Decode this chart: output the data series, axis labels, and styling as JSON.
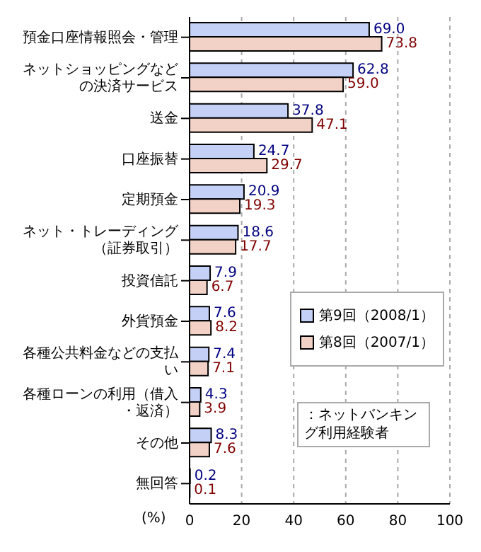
{
  "chart_data": {
    "type": "bar",
    "orientation": "horizontal",
    "xlabel": "(%)",
    "categories": [
      "預金口座情報照会・管理",
      "ネットショッピングなどの決済サービス",
      "送金",
      "口座振替",
      "定期預金",
      "ネット・トレーディング（証券取引）",
      "投資信託",
      "外貨預金",
      "各種公共料金などの支払い",
      "各種ローンの利用（借入・返済）",
      "その他",
      "無回答"
    ],
    "series": [
      {
        "name": "第9回（2008/1）",
        "color": "#c4d0f6",
        "values": [
          69.0,
          62.8,
          37.8,
          24.7,
          20.9,
          18.6,
          7.9,
          7.6,
          7.4,
          4.3,
          8.3,
          0.2
        ],
        "value_labels": [
          "69.0",
          "62.8",
          "37.8",
          "24.7",
          "20.9",
          "18.6",
          "7.9",
          "7.6",
          "7.4",
          "4.3",
          "8.3",
          "0.2"
        ]
      },
      {
        "name": "第8回（2007/1）",
        "color": "#f2d2c6",
        "values": [
          73.8,
          59.0,
          47.1,
          29.7,
          19.3,
          17.7,
          6.7,
          8.2,
          7.1,
          3.9,
          7.6,
          0.1
        ],
        "value_labels": [
          "73.8",
          "59.0",
          "47.1",
          "29.7",
          "19.3",
          "17.7",
          "6.7",
          "8.2",
          "7.1",
          "3.9",
          "7.6",
          "0.1"
        ]
      }
    ],
    "xlim": [
      0,
      100
    ],
    "xticks": [
      0,
      20,
      40,
      60,
      80,
      100
    ],
    "grid": "x",
    "legend": "bottom right",
    "annotations": [
      "：ネットバンキング利用経験者"
    ]
  }
}
